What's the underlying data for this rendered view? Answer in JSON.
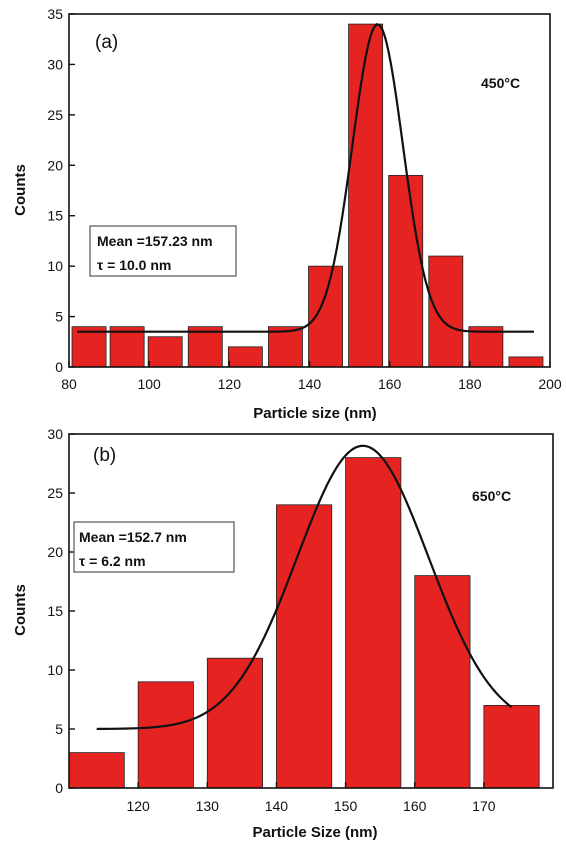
{
  "colors": {
    "bar": "#e52421",
    "bar_edge": "#222222",
    "curve": "#111111",
    "axis": "#111111"
  },
  "chart_data": [
    {
      "type": "bar",
      "panel_label": "(a)",
      "temperature_label": "450°C",
      "annotation": {
        "line1": "Mean =157.23 nm",
        "line2": "τ = 10.0 nm"
      },
      "xlabel": "Particle  size (nm)",
      "ylabel": "Counts",
      "xlim": [
        80,
        200
      ],
      "ylim": [
        0,
        35
      ],
      "xticks": [
        80,
        100,
        120,
        140,
        160,
        180,
        200
      ],
      "yticks": [
        0,
        5,
        10,
        15,
        20,
        25,
        30,
        35
      ],
      "bin_width": 8.5,
      "bars": [
        {
          "x": 85,
          "y": 4
        },
        {
          "x": 94.5,
          "y": 4
        },
        {
          "x": 104,
          "y": 3
        },
        {
          "x": 114,
          "y": 4
        },
        {
          "x": 124,
          "y": 2
        },
        {
          "x": 134,
          "y": 4
        },
        {
          "x": 144,
          "y": 10
        },
        {
          "x": 154,
          "y": 34
        },
        {
          "x": 164,
          "y": 19
        },
        {
          "x": 174,
          "y": 11
        },
        {
          "x": 184,
          "y": 4
        },
        {
          "x": 194,
          "y": 1
        }
      ],
      "fit": {
        "baseline": 3.5,
        "amplitude": 30.5,
        "center": 157,
        "sigma": 6.3,
        "x_range": [
          82,
          196
        ]
      }
    },
    {
      "type": "bar",
      "panel_label": "(b)",
      "temperature_label": "650°C",
      "annotation": {
        "line1": "Mean =152.7 nm",
        "line2": "τ = 6.2 nm"
      },
      "xlabel": "Particle Size (nm)",
      "ylabel": "Counts",
      "xlim": [
        110,
        180
      ],
      "ylim": [
        0,
        30
      ],
      "xticks": [
        120,
        130,
        140,
        150,
        160,
        170
      ],
      "yticks": [
        0,
        5,
        10,
        15,
        20,
        25,
        30
      ],
      "bin_width": 8,
      "bars": [
        {
          "x": 114,
          "y": 3
        },
        {
          "x": 124,
          "y": 9
        },
        {
          "x": 134,
          "y": 11
        },
        {
          "x": 144,
          "y": 24
        },
        {
          "x": 154,
          "y": 28
        },
        {
          "x": 164,
          "y": 18
        },
        {
          "x": 174,
          "y": 7
        }
      ],
      "fit": {
        "baseline": 5,
        "amplitude": 24,
        "center": 152.5,
        "sigma": 9.5,
        "x_range": [
          114,
          174
        ]
      }
    }
  ]
}
